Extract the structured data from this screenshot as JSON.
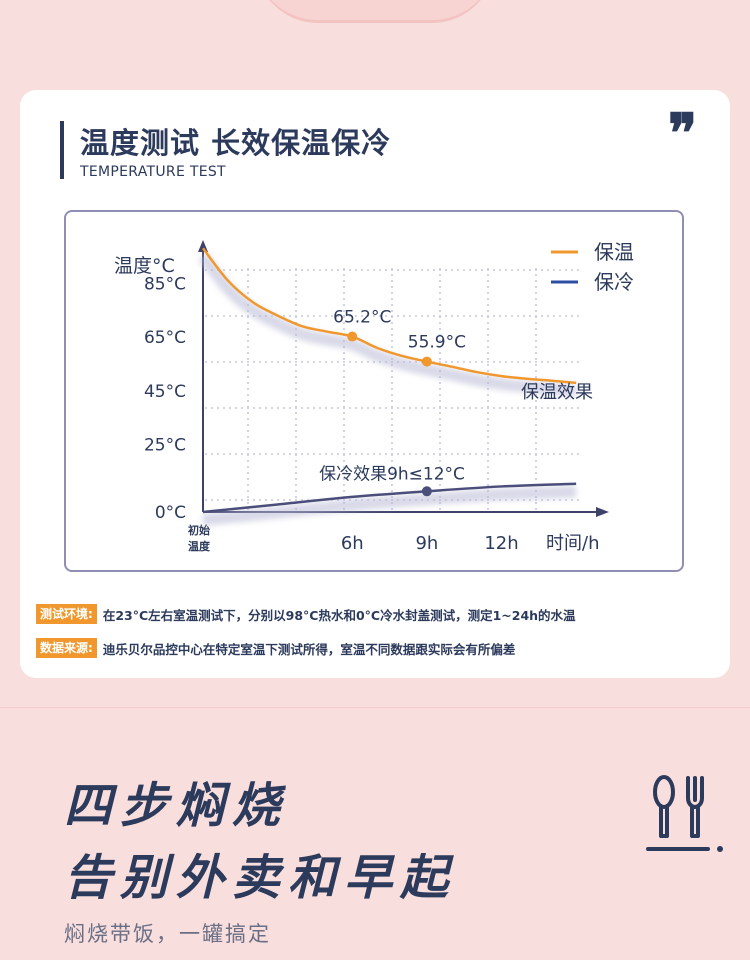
{
  "header": {
    "title": "温度测试 长效保温保冷",
    "subtitle": "TEMPERATURE TEST",
    "quote_mark": "❞"
  },
  "chart_data": {
    "type": "line",
    "ylabel": "温度°C",
    "xlabel": "时间/h",
    "x_ticks": [
      {
        "x": 0,
        "label": "初始\n温度"
      },
      {
        "x": 6,
        "label": "6h"
      },
      {
        "x": 9,
        "label": "9h"
      },
      {
        "x": 12,
        "label": "12h"
      }
    ],
    "y_ticks": [
      0,
      25,
      45,
      65,
      85
    ],
    "y_tick_suffix": "°C",
    "xlim": [
      0,
      16
    ],
    "ylim": [
      0,
      110
    ],
    "legend": [
      {
        "name": "保温",
        "color": "#f0982e"
      },
      {
        "name": "保冷",
        "color": "#2d4fa3"
      }
    ],
    "legend_position": "top-right",
    "grid": true,
    "series": [
      {
        "name": "保温",
        "color": "#f0982e",
        "x": [
          0,
          1,
          2,
          3,
          4,
          5,
          6,
          7,
          8,
          9,
          10,
          11,
          12,
          13,
          14,
          15
        ],
        "y": [
          98,
          86,
          78,
          73,
          69,
          67,
          65.2,
          61,
          58,
          55.9,
          54,
          52,
          50.5,
          49.5,
          48.8,
          48
        ],
        "labeled_points": [
          {
            "x": 6,
            "y": 65.2,
            "label": "65.2°C"
          },
          {
            "x": 9,
            "y": 55.9,
            "label": "55.9°C"
          }
        ],
        "end_label": "保温效果"
      },
      {
        "name": "保冷",
        "color": "#4b4e7a",
        "x": [
          0,
          3,
          6,
          9,
          12,
          15
        ],
        "y": [
          0,
          2.8,
          5.6,
          7.7,
          9.5,
          10.5
        ],
        "labeled_points": [
          {
            "x": 9,
            "y": 7.7,
            "label": "保冷效果9h≤12°C"
          }
        ]
      }
    ]
  },
  "notes": [
    {
      "tag": "测试环境:",
      "text": "在23°C左右室温测试下，分别以98°C热水和0°C冷水封盖测试，测定1~24h的水温"
    },
    {
      "tag": "数据来源:",
      "text": "迪乐贝尔品控中心在特定室温下测试所得，室温不同数据跟实际会有所偏差"
    }
  ],
  "promo": {
    "line1": "四步焖烧",
    "line2": "告别外卖和早起",
    "tagline": "焖烧带饭，一罐搞定",
    "icon": "spoon-fork-icon",
    "accent": "#2c3a5c"
  }
}
